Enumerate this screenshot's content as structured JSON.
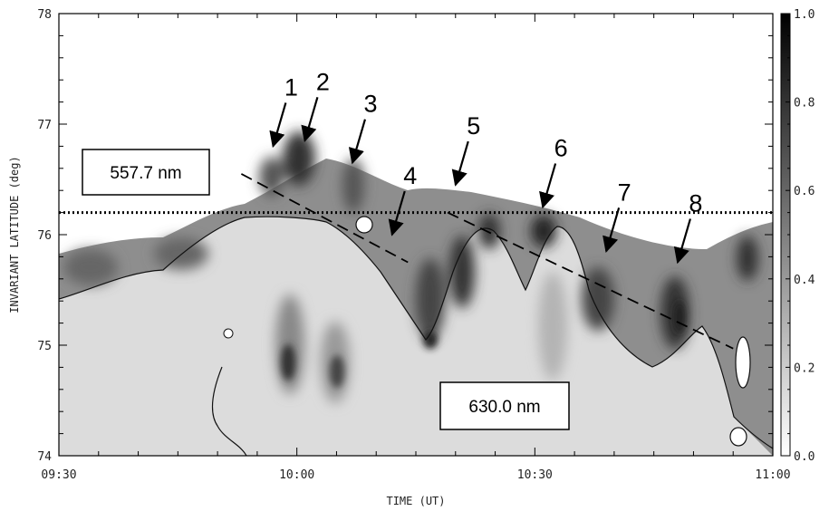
{
  "chart_data": {
    "type": "heatmap",
    "title": "",
    "xlabel": "TIME (UT)",
    "ylabel": "INVARIANT LATITUDE (deg)",
    "x_range": [
      "09:30",
      "11:00"
    ],
    "ylim": [
      74,
      78
    ],
    "x_tick_labels": [
      "09:30",
      "10:00",
      "10:30",
      "11:00"
    ],
    "y_tick_labels": [
      "74",
      "75",
      "76",
      "77",
      "78"
    ],
    "colorbar": {
      "range": [
        0.0,
        1.0
      ],
      "tick_labels": [
        "0.0",
        "0.2",
        "0.4",
        "0.6",
        "0.8",
        "1.0"
      ],
      "colormap": "grayscale (white = 0.0, black = 1.0)"
    },
    "reference_line": {
      "style": "dotted",
      "latitude": 76.2
    },
    "trend_lines": [
      {
        "style": "dashed",
        "from": {
          "time": "09:53",
          "lat": 76.55
        },
        "to": {
          "time": "10:14",
          "lat": 75.75
        }
      },
      {
        "style": "dashed",
        "from": {
          "time": "10:19",
          "lat": 76.2
        },
        "to": {
          "time": "10:55",
          "lat": 74.97
        }
      }
    ],
    "emission_labels": [
      "557.7 nm",
      "630.0 nm"
    ],
    "arrows": [
      {
        "label": "1",
        "time": "09:57",
        "lat": 76.8
      },
      {
        "label": "2",
        "time": "10:01",
        "lat": 76.85
      },
      {
        "label": "3",
        "time": "10:07",
        "lat": 76.65
      },
      {
        "label": "4",
        "time": "10:12",
        "lat": 76.0
      },
      {
        "label": "5",
        "time": "10:20",
        "lat": 76.45
      },
      {
        "label": "6",
        "time": "10:31",
        "lat": 76.25
      },
      {
        "label": "7",
        "time": "10:39",
        "lat": 75.85
      },
      {
        "label": "8",
        "time": "10:48",
        "lat": 75.75
      }
    ],
    "legend": "none"
  }
}
